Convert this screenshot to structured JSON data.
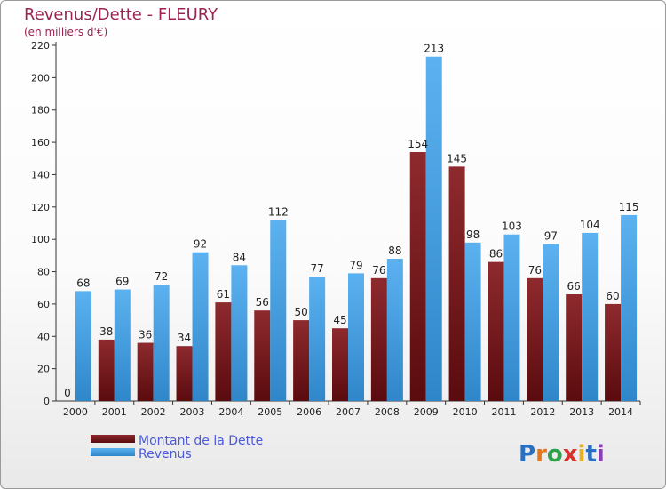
{
  "chart_data": {
    "type": "bar",
    "title": "Revenus/Dette - FLEURY",
    "subtitle": "(en milliers d'€)",
    "categories": [
      "2000",
      "2001",
      "2002",
      "2003",
      "2004",
      "2005",
      "2006",
      "2007",
      "2008",
      "2009",
      "2010",
      "2011",
      "2012",
      "2013",
      "2014"
    ],
    "series": [
      {
        "name": "Montant de la Dette",
        "color": "#7a1a1e",
        "values": [
          0,
          38,
          36,
          34,
          61,
          56,
          50,
          45,
          76,
          154,
          145,
          86,
          76,
          66,
          60
        ]
      },
      {
        "name": "Revenus",
        "color": "#4aa3e6",
        "values": [
          68,
          69,
          72,
          92,
          84,
          112,
          77,
          79,
          88,
          213,
          98,
          103,
          97,
          104,
          115
        ]
      }
    ],
    "ylim": [
      0,
      220
    ],
    "yticks": [
      0,
      20,
      40,
      60,
      80,
      100,
      120,
      140,
      160,
      180,
      200,
      220
    ],
    "grid": false,
    "legend": "bottom-left"
  },
  "brand": {
    "name": "Proxiti"
  }
}
